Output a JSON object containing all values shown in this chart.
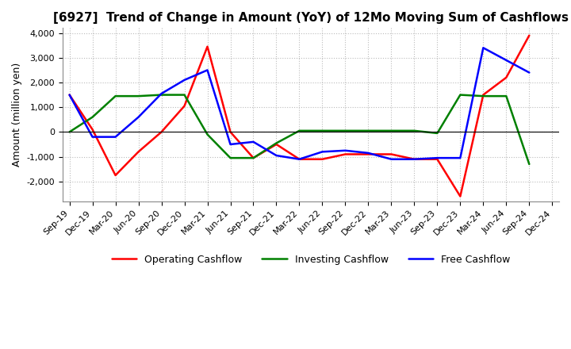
{
  "title": "[6927]  Trend of Change in Amount (YoY) of 12Mo Moving Sum of Cashflows",
  "ylabel": "Amount (million yen)",
  "x_labels": [
    "Sep-19",
    "Dec-19",
    "Mar-20",
    "Jun-20",
    "Sep-20",
    "Dec-20",
    "Mar-21",
    "Jun-21",
    "Sep-21",
    "Dec-21",
    "Mar-22",
    "Jun-22",
    "Sep-22",
    "Dec-22",
    "Mar-23",
    "Jun-23",
    "Sep-23",
    "Dec-23",
    "Mar-24",
    "Jun-24",
    "Sep-24",
    "Dec-24"
  ],
  "operating": [
    1500,
    100,
    -1750,
    -800,
    0,
    1050,
    3450,
    0,
    -1050,
    -500,
    -1100,
    -1100,
    -900,
    -900,
    -900,
    -1100,
    -1100,
    -2600,
    1500,
    2200,
    3900,
    null
  ],
  "investing": [
    0,
    600,
    1450,
    1450,
    1500,
    1500,
    -100,
    -1050,
    -1050,
    -450,
    50,
    50,
    50,
    50,
    50,
    50,
    -50,
    1500,
    1450,
    1450,
    -1300,
    null
  ],
  "free": [
    1500,
    -200,
    -200,
    600,
    1550,
    2100,
    2500,
    -500,
    -400,
    -950,
    -1100,
    -800,
    -750,
    -850,
    -1100,
    -1100,
    -1050,
    -1050,
    3400,
    2900,
    2400,
    null
  ],
  "operating_color": "#ff0000",
  "investing_color": "#008000",
  "free_color": "#0000ff",
  "ylim": [
    -2800,
    4200
  ],
  "yticks": [
    -2000,
    -1000,
    0,
    1000,
    2000,
    3000,
    4000
  ],
  "background_color": "#ffffff",
  "grid_color": "#bbbbbb",
  "title_fontsize": 11,
  "axis_fontsize": 9,
  "tick_fontsize": 8
}
